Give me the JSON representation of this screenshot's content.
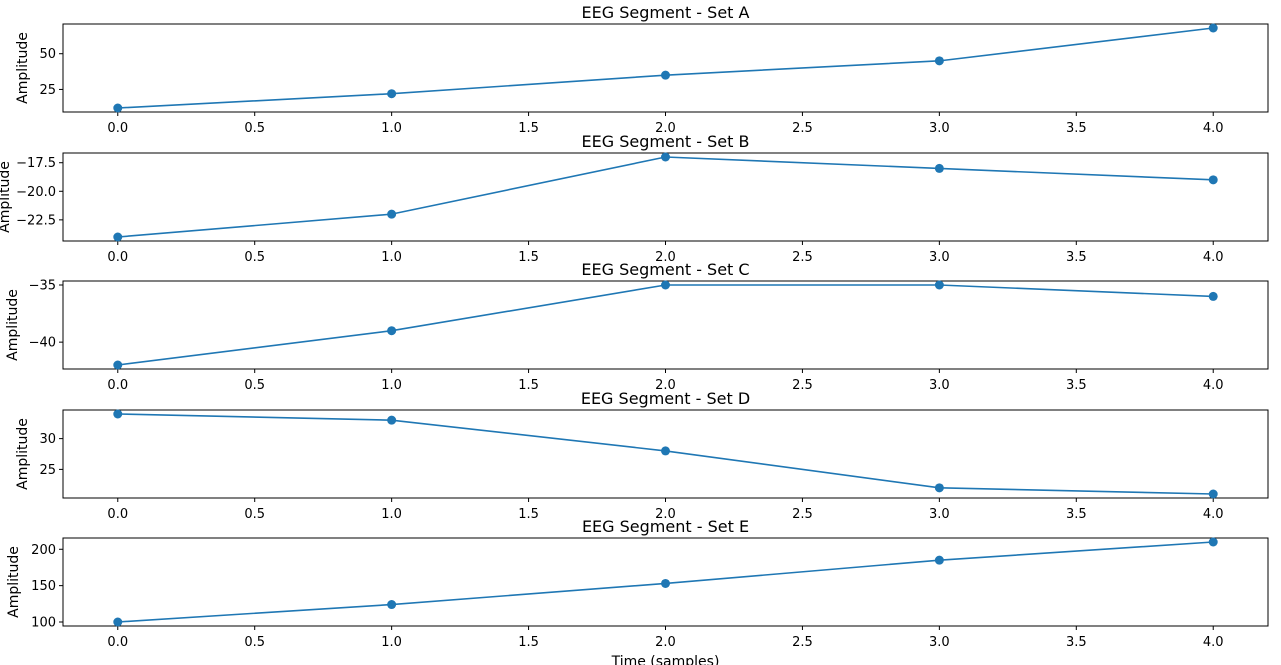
{
  "chart_data": [
    {
      "type": "line",
      "title": "EEG Segment - Set A",
      "ylabel": "Amplitude",
      "xlabel": "",
      "x": [
        0,
        1,
        2,
        3,
        4
      ],
      "values": [
        12,
        22,
        35,
        45,
        68
      ],
      "xlim": [
        -0.2,
        4.2
      ],
      "ylim": [
        9.2,
        70.8
      ],
      "xticks": [
        "0.0",
        "0.5",
        "1.0",
        "1.5",
        "2.0",
        "2.5",
        "3.0",
        "3.5",
        "4.0"
      ],
      "yticks": [
        {
          "v": 25,
          "label": "25"
        },
        {
          "v": 50,
          "label": "50"
        }
      ],
      "marker": "circle",
      "color": "#1f77b4"
    },
    {
      "type": "line",
      "title": "EEG Segment - Set B",
      "ylabel": "Amplitude",
      "xlabel": "",
      "x": [
        0,
        1,
        2,
        3,
        4
      ],
      "values": [
        -24,
        -22,
        -17,
        -18,
        -19
      ],
      "xlim": [
        -0.2,
        4.2
      ],
      "ylim": [
        -24.35,
        -16.65
      ],
      "xticks": [
        "0.0",
        "0.5",
        "1.0",
        "1.5",
        "2.0",
        "2.5",
        "3.0",
        "3.5",
        "4.0"
      ],
      "yticks": [
        {
          "v": -22.5,
          "label": "−22.5"
        },
        {
          "v": -20,
          "label": "−20.0"
        },
        {
          "v": -17.5,
          "label": "−17.5"
        }
      ],
      "marker": "circle",
      "color": "#1f77b4"
    },
    {
      "type": "line",
      "title": "EEG Segment - Set C",
      "ylabel": "Amplitude",
      "xlabel": "",
      "x": [
        0,
        1,
        2,
        3,
        4
      ],
      "values": [
        -42,
        -39,
        -35,
        -35,
        -36
      ],
      "xlim": [
        -0.2,
        4.2
      ],
      "ylim": [
        -42.35,
        -34.65
      ],
      "xticks": [
        "0.0",
        "0.5",
        "1.0",
        "1.5",
        "2.0",
        "2.5",
        "3.0",
        "3.5",
        "4.0"
      ],
      "yticks": [
        {
          "v": -40,
          "label": "−40"
        },
        {
          "v": -35,
          "label": "−35"
        }
      ],
      "marker": "circle",
      "color": "#1f77b4"
    },
    {
      "type": "line",
      "title": "EEG Segment - Set D",
      "ylabel": "Amplitude",
      "xlabel": "",
      "x": [
        0,
        1,
        2,
        3,
        4
      ],
      "values": [
        34,
        33,
        28,
        22,
        21
      ],
      "xlim": [
        -0.2,
        4.2
      ],
      "ylim": [
        20.35,
        34.65
      ],
      "xticks": [
        "0.0",
        "0.5",
        "1.0",
        "1.5",
        "2.0",
        "2.5",
        "3.0",
        "3.5",
        "4.0"
      ],
      "yticks": [
        {
          "v": 25,
          "label": "25"
        },
        {
          "v": 30,
          "label": "30"
        }
      ],
      "marker": "circle",
      "color": "#1f77b4"
    },
    {
      "type": "line",
      "title": "EEG Segment - Set E",
      "ylabel": "Amplitude",
      "xlabel": "Time (samples)",
      "x": [
        0,
        1,
        2,
        3,
        4
      ],
      "values": [
        100,
        124,
        153,
        185,
        210
      ],
      "xlim": [
        -0.2,
        4.2
      ],
      "ylim": [
        94.5,
        215.5
      ],
      "xticks": [
        "0.0",
        "0.5",
        "1.0",
        "1.5",
        "2.0",
        "2.5",
        "3.0",
        "3.5",
        "4.0"
      ],
      "yticks": [
        {
          "v": 100,
          "label": "100"
        },
        {
          "v": 150,
          "label": "150"
        },
        {
          "v": 200,
          "label": "200"
        }
      ],
      "marker": "circle",
      "color": "#1f77b4"
    }
  ]
}
